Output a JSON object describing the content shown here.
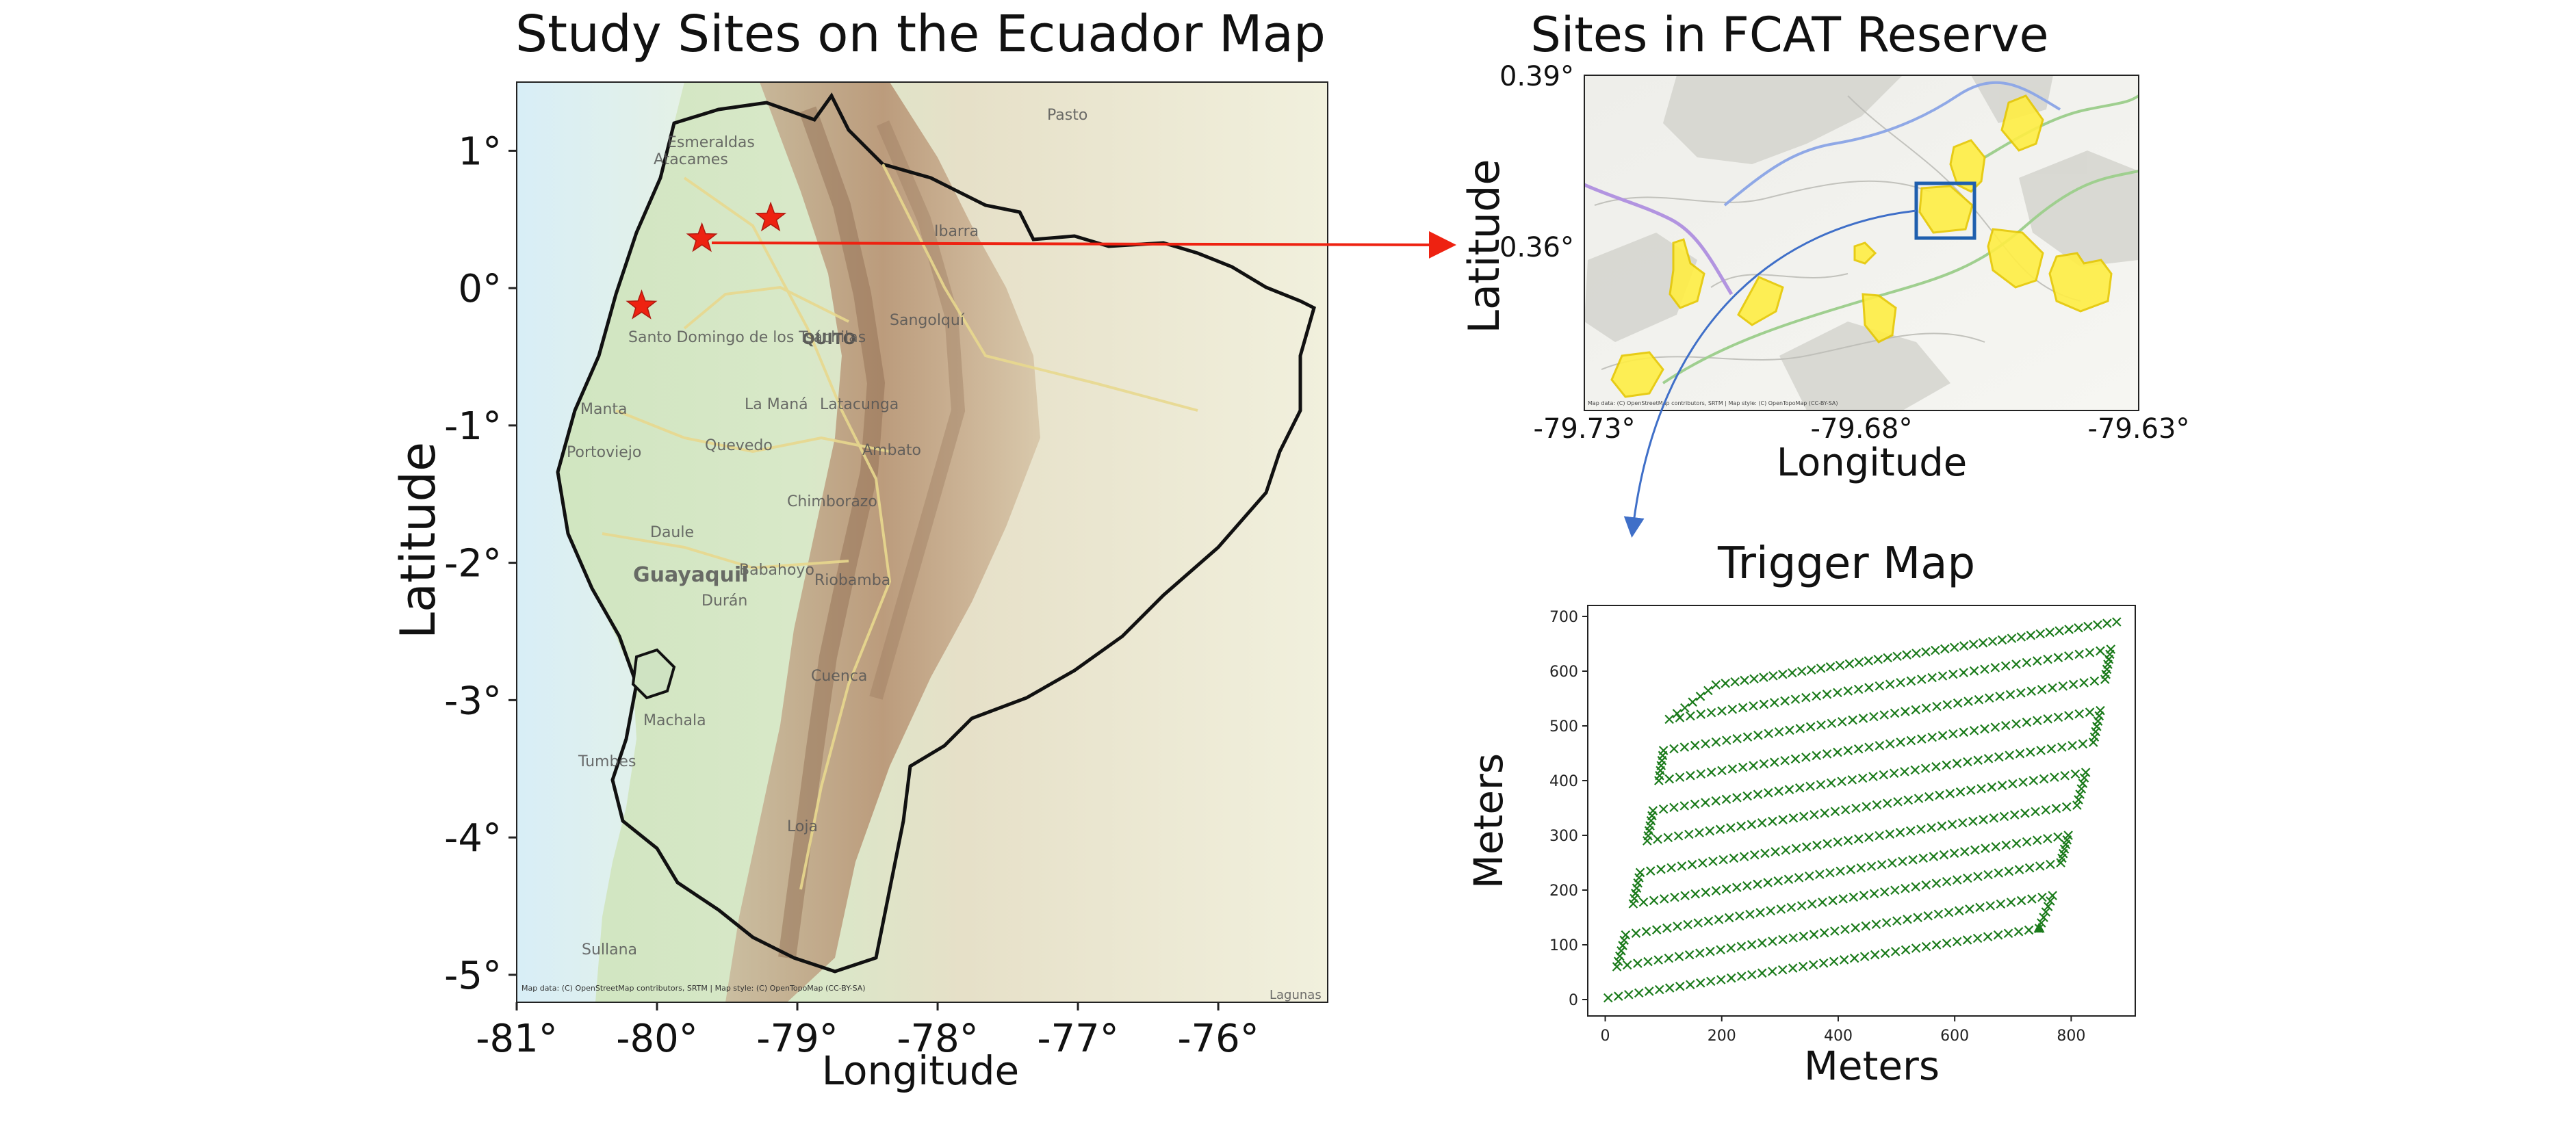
{
  "ecuador_map": {
    "title": "Study Sites on the Ecuador Map",
    "xlabel": "Longitude",
    "ylabel": "Latitude",
    "xticks": [
      "-81°",
      "-80°",
      "-79°",
      "-78°",
      "-77°",
      "-76°"
    ],
    "yticks": [
      "1°",
      "0°",
      "-1°",
      "-2°",
      "-3°",
      "-4°",
      "-5°"
    ],
    "place_labels": [
      "Esmeraldas",
      "Atacames",
      "Pasto",
      "Ibarra",
      "Sangolquí",
      "QUITO",
      "Santo Domingo de los Tsáchilas",
      "Manta",
      "Portoviejo",
      "La Maná",
      "Latacunga",
      "Quevedo",
      "Ambato",
      "Chimborazo",
      "Riobamba",
      "Babahoyo",
      "Daule",
      "Guayaquil",
      "Durán",
      "Cuenca",
      "Machala",
      "Tumbes",
      "Loja",
      "Sullana",
      "Lagunas"
    ],
    "attribution": "Map data: (C) OpenStreetMap contributors, SRTM | Map style: (C) OpenTopoMap (CC-BY-SA)",
    "study_sites": [
      {
        "lon": -80.11,
        "lat": -0.13
      },
      {
        "lon": -79.68,
        "lat": 0.36
      },
      {
        "lon": -79.19,
        "lat": 0.51
      }
    ],
    "site_color": "#ee2211"
  },
  "reserve_map": {
    "title": "Sites in FCAT Reserve",
    "xlabel": "Longitude",
    "ylabel": "Latitude",
    "xticks": [
      "-79.73°",
      "-79.68°",
      "-79.63°"
    ],
    "yticks": [
      "0.39°",
      "0.36°"
    ],
    "attribution": "Map data: (C) OpenStreetMap contributors, SRTM | Map style: (C) OpenTopoMap (CC-BY-SA)",
    "polygon_color": "#ffee44"
  },
  "chart_data": {
    "type": "scatter",
    "title": "Trigger Map",
    "xlabel": "Meters",
    "ylabel": "Meters",
    "xlim": [
      -30,
      910
    ],
    "ylim": [
      -30,
      720
    ],
    "xticks": [
      "0",
      "200",
      "400",
      "600",
      "800"
    ],
    "yticks": [
      "0",
      "100",
      "200",
      "300",
      "400",
      "500",
      "600",
      "700"
    ],
    "marker": "x",
    "color": "#1a7a1a",
    "grid_rows": [
      {
        "x0": 5,
        "y0": 3,
        "x1": 745,
        "y1": 130
      },
      {
        "x0": 20,
        "y0": 60,
        "x1": 768,
        "y1": 190
      },
      {
        "x0": 35,
        "y0": 118,
        "x1": 782,
        "y1": 250
      },
      {
        "x0": 48,
        "y0": 175,
        "x1": 795,
        "y1": 300
      },
      {
        "x0": 60,
        "y0": 232,
        "x1": 810,
        "y1": 355
      },
      {
        "x0": 72,
        "y0": 290,
        "x1": 825,
        "y1": 415
      },
      {
        "x0": 82,
        "y0": 345,
        "x1": 838,
        "y1": 470
      },
      {
        "x0": 92,
        "y0": 400,
        "x1": 850,
        "y1": 528
      },
      {
        "x0": 100,
        "y0": 455,
        "x1": 858,
        "y1": 585
      },
      {
        "x0": 110,
        "y0": 512,
        "x1": 868,
        "y1": 640
      },
      {
        "x0": 190,
        "y0": 575,
        "x1": 878,
        "y1": 690
      }
    ],
    "end_marker": {
      "x": 745,
      "y": 130
    }
  }
}
